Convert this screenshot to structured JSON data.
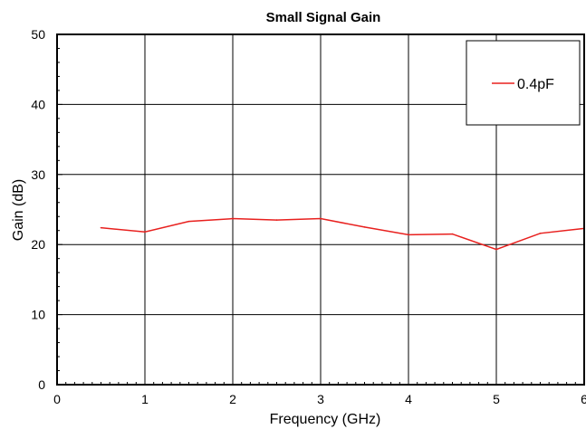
{
  "chart_data": {
    "type": "line",
    "title": "Small Signal Gain",
    "xlabel": "Frequency (GHz)",
    "ylabel": "Gain (dB)",
    "xlim": [
      0,
      6
    ],
    "ylim": [
      0,
      50
    ],
    "x_ticks": [
      0,
      1,
      2,
      3,
      4,
      5,
      6
    ],
    "y_ticks": [
      0,
      10,
      20,
      30,
      40,
      50
    ],
    "grid": true,
    "legend_position": "top-right",
    "series": [
      {
        "name": "0.4pF",
        "color": "#e8201e",
        "x": [
          0.5,
          1.0,
          1.5,
          2.0,
          2.5,
          3.0,
          3.5,
          4.0,
          4.5,
          5.0,
          5.5,
          6.0
        ],
        "y": [
          22.4,
          21.8,
          23.3,
          23.7,
          23.5,
          23.7,
          22.5,
          21.4,
          21.5,
          19.3,
          21.6,
          22.3
        ]
      }
    ]
  }
}
